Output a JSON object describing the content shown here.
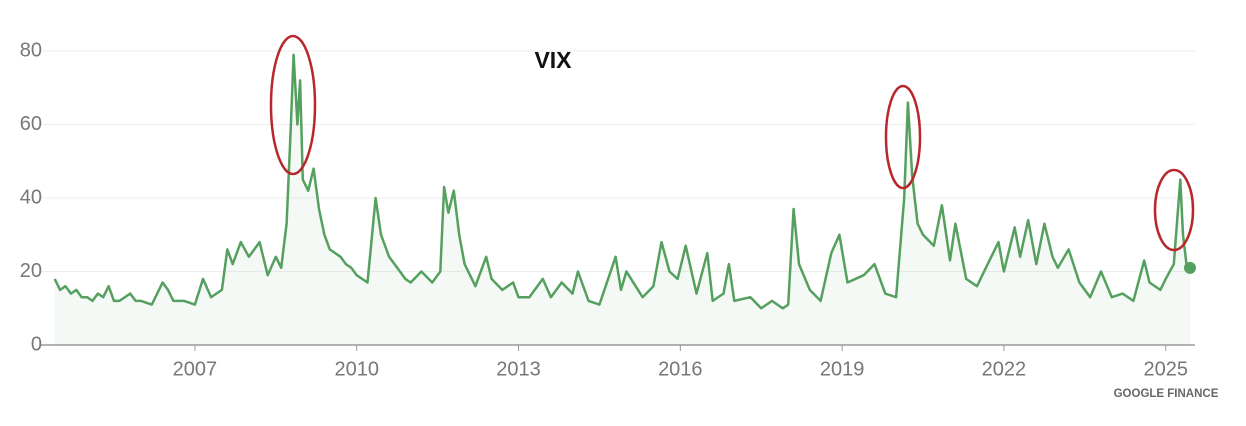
{
  "chart_data": {
    "type": "line",
    "title": "VIX",
    "source": "GOOGLE FINANCE",
    "x": [
      2004.4,
      2004.5,
      2004.6,
      2004.7,
      2004.8,
      2004.9,
      2005.0,
      2005.1,
      2005.2,
      2005.3,
      2005.4,
      2005.5,
      2005.6,
      2005.8,
      2005.9,
      2006.0,
      2006.2,
      2006.4,
      2006.5,
      2006.6,
      2006.8,
      2007.0,
      2007.15,
      2007.3,
      2007.5,
      2007.6,
      2007.7,
      2007.85,
      2008.0,
      2008.2,
      2008.35,
      2008.5,
      2008.6,
      2008.7,
      2008.78,
      2008.83,
      2008.9,
      2008.95,
      2009.0,
      2009.1,
      2009.2,
      2009.3,
      2009.4,
      2009.5,
      2009.6,
      2009.7,
      2009.8,
      2009.9,
      2010.0,
      2010.2,
      2010.35,
      2010.45,
      2010.6,
      2010.75,
      2010.9,
      2011.0,
      2011.2,
      2011.4,
      2011.55,
      2011.62,
      2011.7,
      2011.8,
      2011.9,
      2012.0,
      2012.2,
      2012.4,
      2012.5,
      2012.7,
      2012.9,
      2013.0,
      2013.2,
      2013.45,
      2013.6,
      2013.8,
      2014.0,
      2014.1,
      2014.3,
      2014.5,
      2014.8,
      2014.9,
      2015.0,
      2015.3,
      2015.5,
      2015.65,
      2015.8,
      2015.95,
      2016.1,
      2016.3,
      2016.5,
      2016.6,
      2016.8,
      2016.9,
      2017.0,
      2017.3,
      2017.5,
      2017.7,
      2017.9,
      2018.0,
      2018.1,
      2018.2,
      2018.4,
      2018.6,
      2018.8,
      2018.95,
      2019.1,
      2019.4,
      2019.6,
      2019.8,
      2020.0,
      2020.15,
      2020.22,
      2020.3,
      2020.4,
      2020.5,
      2020.7,
      2020.85,
      2021.0,
      2021.1,
      2021.3,
      2021.5,
      2021.7,
      2021.9,
      2022.0,
      2022.2,
      2022.3,
      2022.45,
      2022.6,
      2022.75,
      2022.9,
      2023.0,
      2023.2,
      2023.4,
      2023.6,
      2023.8,
      2024.0,
      2024.2,
      2024.4,
      2024.6,
      2024.7,
      2024.9,
      2025.0,
      2025.15,
      2025.27,
      2025.32,
      2025.4,
      2025.45
    ],
    "series": [
      {
        "name": "VIX",
        "color": "#55a05e",
        "values": [
          18,
          15,
          16,
          14,
          15,
          13,
          13,
          12,
          14,
          13,
          16,
          12,
          12,
          14,
          12,
          12,
          11,
          17,
          15,
          12,
          12,
          11,
          18,
          13,
          15,
          26,
          22,
          28,
          24,
          28,
          19,
          24,
          21,
          33,
          60,
          79,
          60,
          72,
          45,
          42,
          48,
          37,
          30,
          26,
          25,
          24,
          22,
          21,
          19,
          17,
          40,
          30,
          24,
          21,
          18,
          17,
          20,
          17,
          20,
          43,
          36,
          42,
          30,
          22,
          16,
          24,
          18,
          15,
          17,
          13,
          13,
          18,
          13,
          17,
          14,
          20,
          12,
          11,
          24,
          15,
          20,
          13,
          16,
          28,
          20,
          18,
          27,
          14,
          25,
          12,
          14,
          22,
          12,
          13,
          10,
          12,
          10,
          11,
          37,
          22,
          15,
          12,
          25,
          30,
          17,
          19,
          22,
          14,
          13,
          40,
          66,
          46,
          33,
          30,
          27,
          38,
          23,
          33,
          18,
          16,
          22,
          28,
          20,
          32,
          24,
          34,
          22,
          33,
          24,
          21,
          26,
          17,
          13,
          20,
          13,
          14,
          12,
          23,
          17,
          15,
          18,
          22,
          45,
          30,
          20,
          21
        ]
      }
    ],
    "xlim": [
      2004.35,
      2025.45
    ],
    "xticks": [
      2007,
      2010,
      2013,
      2016,
      2019,
      2022,
      2025
    ],
    "ylim": [
      0,
      80
    ],
    "yticks": [
      0,
      20,
      40,
      60,
      80
    ],
    "grid": true
  }
}
